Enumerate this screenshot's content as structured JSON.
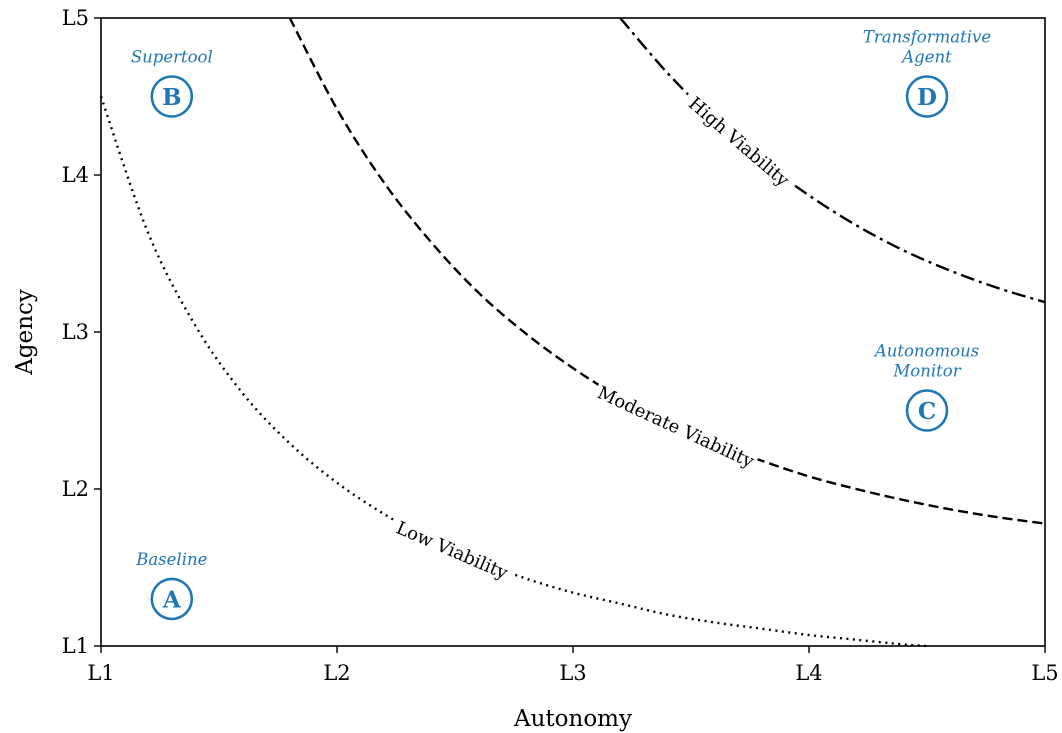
{
  "chart_data": {
    "type": "line",
    "xlabel": "Autonomy",
    "ylabel": "Agency",
    "x_ticks": [
      "L1",
      "L2",
      "L3",
      "L4",
      "L5"
    ],
    "y_ticks": [
      "L1",
      "L2",
      "L3",
      "L4",
      "L5"
    ],
    "xlim": [
      1,
      5
    ],
    "ylim": [
      1,
      5
    ],
    "grid": false,
    "series": [
      {
        "name": "Low Viability",
        "line_style": "dotted",
        "color": "#000000",
        "x": [
          1.0,
          1.2,
          1.4,
          1.6,
          1.8,
          2.0,
          2.2,
          2.4,
          2.6,
          2.8,
          3.0,
          3.2,
          3.4,
          3.6,
          3.8,
          4.0,
          4.2,
          4.4,
          4.5
        ],
        "y": [
          4.5,
          3.63,
          3.04,
          2.61,
          2.29,
          2.04,
          1.84,
          1.67,
          1.54,
          1.43,
          1.34,
          1.27,
          1.2,
          1.15,
          1.11,
          1.07,
          1.04,
          1.01,
          1.0
        ]
      },
      {
        "name": "Moderate Viability",
        "line_style": "dashed",
        "color": "#000000",
        "x": [
          1.8,
          2.0,
          2.2,
          2.4,
          2.6,
          2.8,
          3.0,
          3.2,
          3.4,
          3.6,
          3.8,
          4.0,
          4.2,
          4.4,
          4.6,
          4.8,
          5.0
        ],
        "y": [
          5.0,
          4.42,
          3.95,
          3.57,
          3.25,
          2.99,
          2.77,
          2.58,
          2.42,
          2.29,
          2.18,
          2.08,
          2.0,
          1.93,
          1.87,
          1.82,
          1.78
        ]
      },
      {
        "name": "High Viability",
        "line_style": "dashdot",
        "color": "#000000",
        "x": [
          3.2,
          3.4,
          3.6,
          3.8,
          4.0,
          4.2,
          4.4,
          4.6,
          4.8,
          5.0
        ],
        "y": [
          5.0,
          4.65,
          4.35,
          4.09,
          3.87,
          3.68,
          3.52,
          3.39,
          3.28,
          3.19
        ]
      }
    ],
    "annotations": [
      {
        "letter": "A",
        "label": "Baseline",
        "x": 1.3,
        "y": 1.3
      },
      {
        "letter": "B",
        "label": "Supertool",
        "x": 1.3,
        "y": 4.5
      },
      {
        "letter": "C",
        "label": "Autonomous\nMonitor",
        "x": 4.5,
        "y": 2.5
      },
      {
        "letter": "D",
        "label": "Transformative\nAgent",
        "x": 4.5,
        "y": 4.5
      }
    ],
    "colors": {
      "annotation": "#1f77b4",
      "curves": "#000000"
    }
  }
}
